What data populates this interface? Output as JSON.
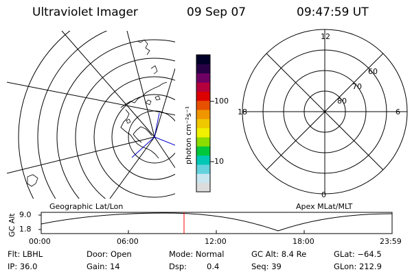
{
  "header": {
    "instrument": "Ultraviolet Imager",
    "date": "09 Sep 07",
    "time": "09:47:59 UT"
  },
  "panels": {
    "left_label": "Geographic Lat/Lon",
    "right_label": "Apex MLat/MLT"
  },
  "polar": {
    "mlt_labels": [
      "12",
      "18",
      "6",
      "0"
    ],
    "mlat_labels": [
      "60",
      "70",
      "80"
    ]
  },
  "colorbar": {
    "unit_label": "photon cm⁻²s⁻¹",
    "tick_labels": [
      "100",
      "10"
    ],
    "scale": "log",
    "colors": [
      "#dcdcdc",
      "#c8e6f0",
      "#64d2dc",
      "#00c8b4",
      "#00c83c",
      "#8cdc00",
      "#f0f000",
      "#f0c800",
      "#f09600",
      "#e65000",
      "#dc0000",
      "#b4003c",
      "#6e0064",
      "#280046",
      "#000028"
    ]
  },
  "altitude_plot": {
    "ylabel": "GC Alt",
    "y_ticks": [
      "9.0",
      "1.8"
    ],
    "x_ticks": [
      "00:00",
      "06:00",
      "12:00",
      "18:00",
      "23:59"
    ],
    "current_marker_color": "#ff0000"
  },
  "status": {
    "flt": "Flt: LBHL",
    "ip": "IP: 36.0",
    "door": "Door: Open",
    "gain": "Gain: 14",
    "mode": "Mode: Normal",
    "dsp": "Dsp:",
    "dsp_value": "0.4",
    "gcalt": "GC Alt: 8.4 Re",
    "seq": "Seq: 39",
    "glat": "GLat: −64.5",
    "glon": "GLon: 212.9"
  }
}
